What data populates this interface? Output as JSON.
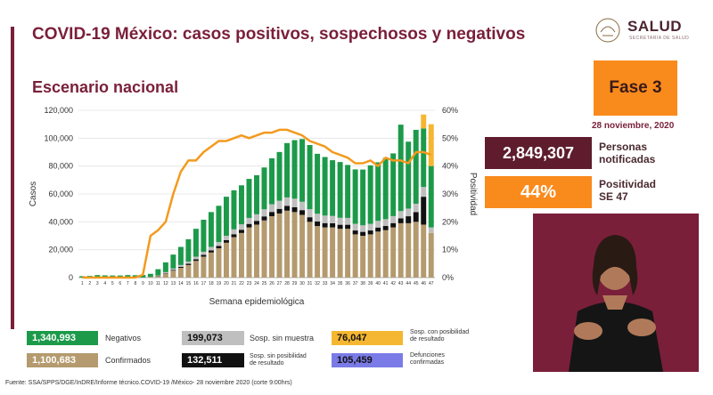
{
  "header": {
    "title": "COVID-19 México: casos positivos, sospechosos y negativos",
    "subtitle": "Escenario nacional",
    "logo_text": "SALUD",
    "logo_sub": "SECRETARÍA DE SALUD"
  },
  "side": {
    "fase": "Fase 3",
    "fecha": "28 noviembre, 2020",
    "personas_value": "2,849,307",
    "personas_label_1": "Personas",
    "personas_label_2": "notificadas",
    "positividad_value": "44%",
    "positividad_label_1": "Positividad",
    "positividad_label_2": "SE 47"
  },
  "legend": {
    "negativos_value": "1,340,993",
    "negativos_label": "Negativos",
    "confirmados_value": "1,100,683",
    "confirmados_label": "Confirmados",
    "sosp_sin_muestra_value": "199,073",
    "sosp_sin_muestra_label": "Sosp. sin muestra",
    "sosp_sin_pos_value": "132,511",
    "sosp_sin_pos_label_1": "Sosp. sin posibilidad",
    "sosp_sin_pos_label_2": "de resultado",
    "sosp_con_pos_value": "76,047",
    "sosp_con_pos_label_1": "Sosp. con posibilidad",
    "sosp_con_pos_label_2": "de resultado",
    "defunciones_value": "105,459",
    "defunciones_label_1": "Defunciones",
    "defunciones_label_2": "confirmadas"
  },
  "footer": "Fuente: SSA/SPPS/DGE/InDRE/Informe técnico.COVID-19 /México- 28 noviembre 2020 (corte 9:00hrs)",
  "colors": {
    "confirmados": "#b49a6e",
    "sosp_sin_pos": "#111111",
    "sosp_sin_muestra": "#bfbfbf",
    "negativos": "#1c9a4a",
    "sosp_con_pos": "#f5b731",
    "positividad": "#f39a1e",
    "defunciones": "#7b7be8",
    "accent": "#7a1f3a"
  },
  "chart_data": {
    "type": "bar",
    "stacked": true,
    "xlabel": "Semana epidemiológica",
    "ylabel": "Casos",
    "y2label": "Positividad",
    "ylim": [
      0,
      120000
    ],
    "y2lim": [
      0,
      60
    ],
    "yticks": [
      "0",
      "20,000",
      "40,000",
      "60,000",
      "80,000",
      "100,000",
      "120,000"
    ],
    "y2ticks": [
      "0%",
      "10%",
      "20%",
      "30%",
      "40%",
      "50%",
      "60%"
    ],
    "categories": [
      "1",
      "2",
      "3",
      "4",
      "5",
      "6",
      "7",
      "8",
      "9",
      "10",
      "11",
      "12",
      "13",
      "14",
      "15",
      "16",
      "17",
      "18",
      "19",
      "20",
      "21",
      "22",
      "23",
      "24",
      "25",
      "26",
      "27",
      "28",
      "29",
      "30",
      "31",
      "32",
      "33",
      "34",
      "35",
      "36",
      "37",
      "38",
      "39",
      "40",
      "41",
      "42",
      "43",
      "44",
      "45",
      "46",
      "47"
    ],
    "series": [
      {
        "name": "Confirmados",
        "key": "confirmados",
        "values": [
          0,
          0,
          0,
          0,
          0,
          0,
          0,
          0,
          50,
          300,
          1000,
          3000,
          5000,
          7000,
          9000,
          12000,
          15000,
          18000,
          21000,
          25000,
          29000,
          32000,
          36000,
          38000,
          41000,
          44000,
          46000,
          48000,
          47000,
          45000,
          40000,
          37000,
          36000,
          36000,
          35000,
          35000,
          31000,
          30000,
          31000,
          33000,
          34000,
          36000,
          39000,
          39000,
          40000,
          38000,
          32000
        ]
      },
      {
        "name": "Sosp. sin posibilidad de resultado",
        "key": "sosp_sin_pos",
        "values": [
          0,
          0,
          0,
          0,
          0,
          0,
          0,
          0,
          0,
          100,
          200,
          300,
          500,
          700,
          900,
          1100,
          1300,
          1500,
          1700,
          1900,
          2100,
          2300,
          2500,
          2700,
          2900,
          3100,
          3300,
          3500,
          3500,
          3400,
          3300,
          3200,
          3100,
          3000,
          2900,
          2900,
          2800,
          2800,
          2800,
          2900,
          3000,
          3100,
          3500,
          5000,
          7000,
          20000,
          0
        ]
      },
      {
        "name": "Sosp. sin muestra",
        "key": "sosp_sin_muestra",
        "values": [
          0,
          0,
          0,
          0,
          0,
          0,
          0,
          0,
          0,
          100,
          300,
          600,
          1000,
          1300,
          1600,
          1900,
          2200,
          2500,
          2800,
          3100,
          3500,
          3900,
          4300,
          4700,
          5100,
          5500,
          5800,
          6000,
          6100,
          6000,
          5800,
          5600,
          5400,
          5200,
          5000,
          4900,
          4800,
          4700,
          4700,
          4800,
          4900,
          5000,
          5200,
          5500,
          6000,
          7000,
          4000
        ]
      },
      {
        "name": "Negativos",
        "key": "negativos",
        "values": [
          1000,
          1200,
          1800,
          1600,
          1500,
          1500,
          1800,
          1700,
          1800,
          2200,
          4500,
          7000,
          10000,
          13000,
          16000,
          20000,
          23000,
          25000,
          26000,
          28000,
          28000,
          28000,
          28000,
          28000,
          30000,
          33000,
          35000,
          39000,
          42000,
          45000,
          46000,
          43000,
          42000,
          40000,
          40000,
          38000,
          39000,
          40000,
          42000,
          42000,
          44000,
          45000,
          62000,
          48000,
          53000,
          42000,
          44000
        ]
      },
      {
        "name": "Sosp. con posibilidad de resultado",
        "key": "sosp_con_pos",
        "values": [
          0,
          0,
          0,
          0,
          0,
          0,
          0,
          0,
          0,
          0,
          0,
          0,
          0,
          0,
          0,
          0,
          0,
          0,
          0,
          0,
          0,
          0,
          0,
          0,
          0,
          0,
          0,
          0,
          0,
          0,
          0,
          0,
          0,
          0,
          0,
          0,
          0,
          0,
          0,
          0,
          0,
          0,
          0,
          0,
          0,
          10000,
          30000
        ]
      }
    ],
    "line": {
      "name": "Positividad",
      "key": "positividad",
      "axis": "right",
      "values": [
        0,
        0,
        0,
        0,
        0,
        0,
        0,
        0,
        1,
        15,
        17,
        20,
        30,
        38,
        42,
        42,
        45,
        47,
        49,
        49,
        50,
        51,
        50,
        51,
        52,
        52,
        53,
        53,
        52,
        51,
        49,
        48,
        47,
        45,
        44,
        43,
        41,
        41,
        42,
        40,
        43,
        42,
        42,
        41,
        45,
        45,
        44
      ]
    }
  }
}
